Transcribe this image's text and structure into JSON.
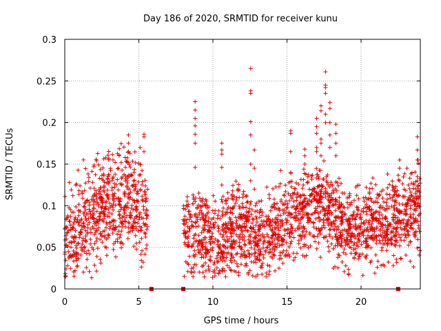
{
  "chart_data": {
    "type": "scatter",
    "title": "Day 186 of 2020, SRMTID for receiver kunu",
    "xlabel": "GPS time / hours",
    "ylabel": "SRMTID / TECUs",
    "xlim": [
      0,
      24
    ],
    "ylim": [
      0,
      0.3
    ],
    "xticks": [
      0,
      5,
      10,
      15,
      20
    ],
    "yticks": [
      0,
      0.05,
      0.1,
      0.15,
      0.2,
      0.25,
      0.3
    ],
    "xtick_labels": [
      "0",
      "5",
      "10",
      "15",
      "20"
    ],
    "ytick_labels": [
      "0",
      "0.05",
      "0.1",
      "0.15",
      "0.2",
      "0.25",
      "0.3"
    ],
    "grid": true,
    "marker": "+",
    "series_color": "#e00000",
    "gap_markers": [
      {
        "x": 5.85,
        "y": 0
      },
      {
        "x": 8.0,
        "y": 0
      },
      {
        "x": 22.5,
        "y": 0
      }
    ],
    "segments": [
      {
        "x_start": 0.0,
        "x_end": 5.6,
        "points_per_hour": 115,
        "seed": 1,
        "trend": [
          [
            0,
            0.05
          ],
          [
            1,
            0.08
          ],
          [
            2,
            0.09
          ],
          [
            3,
            0.1
          ],
          [
            4,
            0.11
          ],
          [
            5,
            0.1
          ],
          [
            5.6,
            0.09
          ]
        ],
        "spread": 0.03
      },
      {
        "x_start": 8.0,
        "x_end": 24.0,
        "points_per_hour": 115,
        "seed": 2,
        "trend": [
          [
            8,
            0.07
          ],
          [
            9,
            0.065
          ],
          [
            10,
            0.055
          ],
          [
            11,
            0.07
          ],
          [
            12,
            0.07
          ],
          [
            13,
            0.06
          ],
          [
            14,
            0.07
          ],
          [
            15,
            0.085
          ],
          [
            16,
            0.09
          ],
          [
            17,
            0.1
          ],
          [
            18,
            0.09
          ],
          [
            19,
            0.07
          ],
          [
            20,
            0.07
          ],
          [
            21,
            0.075
          ],
          [
            22,
            0.08
          ],
          [
            23,
            0.09
          ],
          [
            24,
            0.1
          ]
        ],
        "spread": 0.025
      }
    ],
    "spikes": [
      {
        "x": 8.8,
        "y": [
          0.225,
          0.215,
          0.205,
          0.196,
          0.186,
          0.175,
          0.146,
          0.105
        ]
      },
      {
        "x": 10.6,
        "y": [
          0.175,
          0.167,
          0.162,
          0.146,
          0.125
        ]
      },
      {
        "x": 12.55,
        "y": [
          0.265,
          0.238,
          0.235,
          0.201,
          0.185,
          0.15,
          0.13
        ]
      },
      {
        "x": 12.8,
        "y": [
          0.167,
          0.145,
          0.12
        ]
      },
      {
        "x": 15.25,
        "y": [
          0.19,
          0.187,
          0.165,
          0.14
        ]
      },
      {
        "x": 16.2,
        "y": [
          0.168,
          0.16,
          0.15
        ]
      },
      {
        "x": 17.0,
        "y": [
          0.205,
          0.195,
          0.187,
          0.17,
          0.165
        ]
      },
      {
        "x": 17.3,
        "y": [
          0.22,
          0.214,
          0.18,
          0.175,
          0.16
        ]
      },
      {
        "x": 17.6,
        "y": [
          0.261,
          0.245,
          0.242,
          0.235,
          0.21,
          0.2
        ]
      },
      {
        "x": 17.9,
        "y": [
          0.224,
          0.217,
          0.2,
          0.185,
          0.17
        ]
      },
      {
        "x": 18.3,
        "y": [
          0.198,
          0.187,
          0.175,
          0.16
        ]
      },
      {
        "x": 4.3,
        "y": [
          0.185,
          0.175,
          0.165
        ]
      },
      {
        "x": 5.35,
        "y": [
          0.186,
          0.183,
          0.165
        ]
      },
      {
        "x": 22.6,
        "y": [
          0.155,
          0.145,
          0.13
        ]
      },
      {
        "x": 23.8,
        "y": [
          0.183,
          0.167,
          0.155,
          0.135
        ]
      }
    ]
  }
}
